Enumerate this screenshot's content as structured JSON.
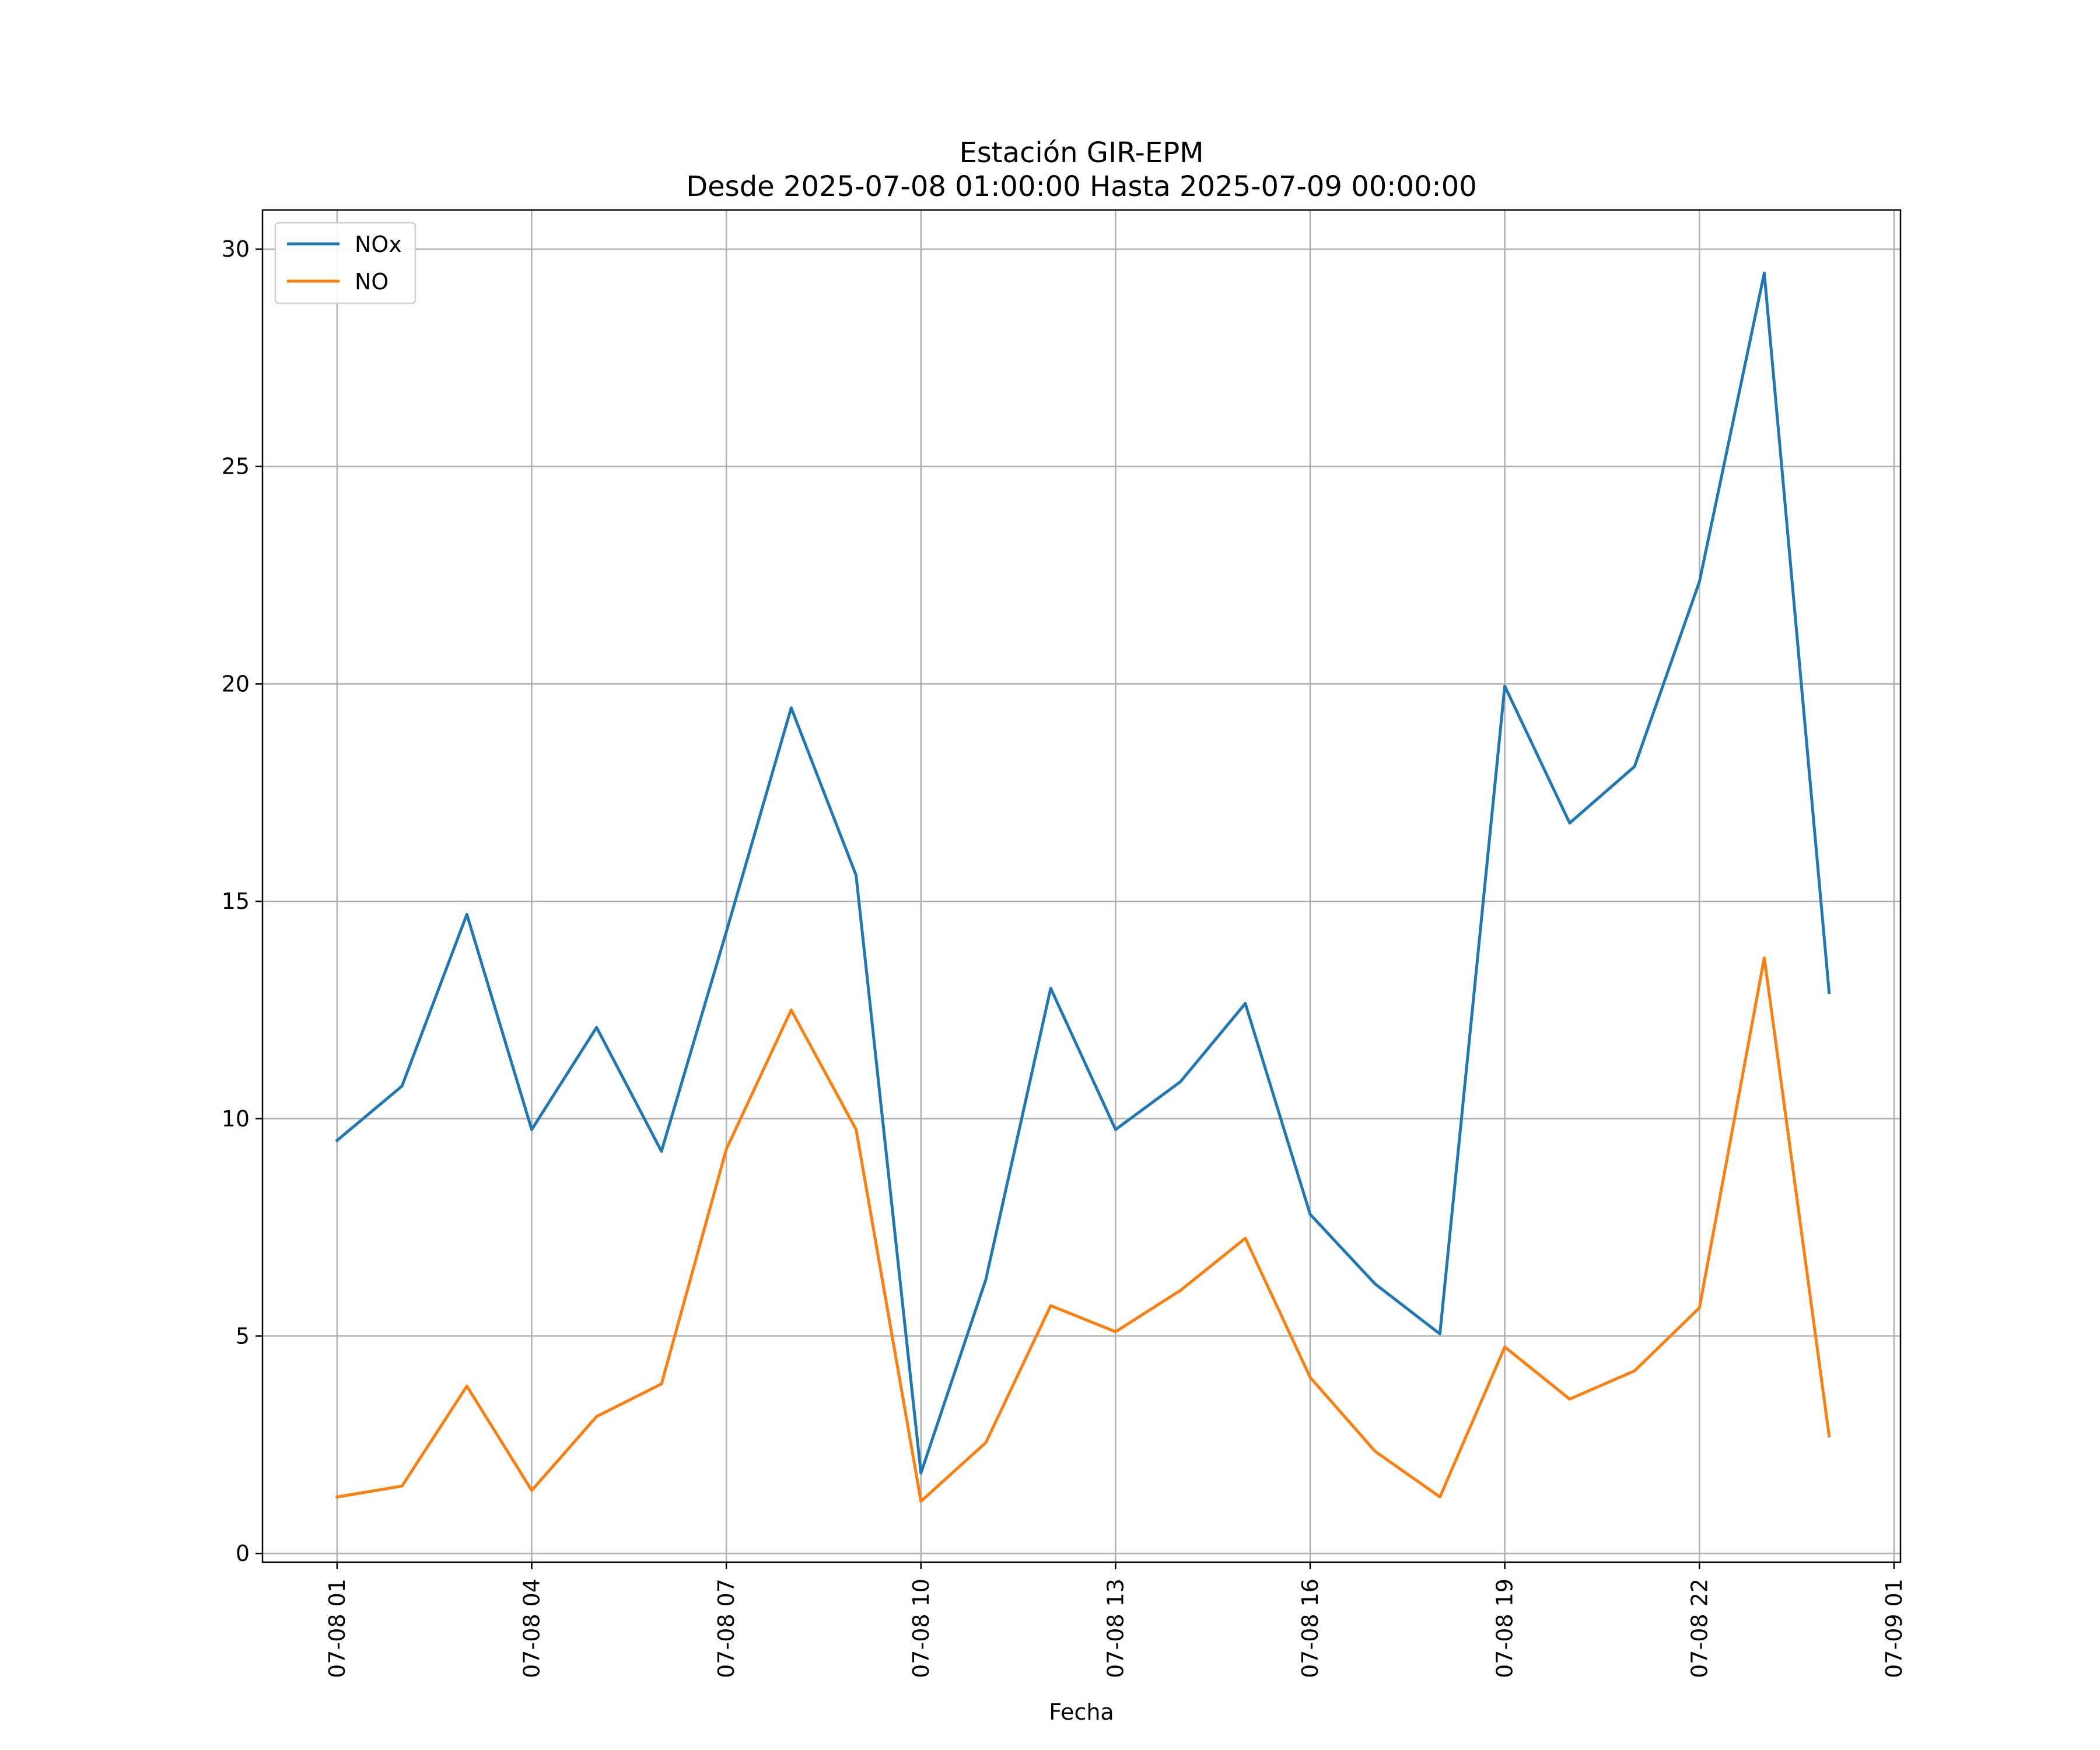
{
  "chart_data": {
    "type": "line",
    "title": "Estación GIR-EPM",
    "subtitle": "Desde 2025-07-08 01:00:00 Hasta 2025-07-09 00:00:00",
    "xlabel": "Fecha",
    "ylabel": "",
    "x": [
      "07-08 01",
      "07-08 02",
      "07-08 03",
      "07-08 04",
      "07-08 05",
      "07-08 06",
      "07-08 07",
      "07-08 08",
      "07-08 09",
      "07-08 10",
      "07-08 11",
      "07-08 12",
      "07-08 13",
      "07-08 14",
      "07-08 15",
      "07-08 16",
      "07-08 17",
      "07-08 18",
      "07-08 19",
      "07-08 20",
      "07-08 21",
      "07-08 22",
      "07-08 23",
      "07-09 00"
    ],
    "x_hours": [
      1,
      2,
      3,
      4,
      5,
      6,
      7,
      8,
      9,
      10,
      11,
      12,
      13,
      14,
      15,
      16,
      17,
      18,
      19,
      20,
      21,
      22,
      23,
      24
    ],
    "xlim": [
      -0.15,
      25.1
    ],
    "ylim": [
      -0.2,
      30.9
    ],
    "x_ticks": [
      {
        "hour": 1,
        "label": "07-08 01"
      },
      {
        "hour": 4,
        "label": "07-08 04"
      },
      {
        "hour": 7,
        "label": "07-08 07"
      },
      {
        "hour": 10,
        "label": "07-08 10"
      },
      {
        "hour": 13,
        "label": "07-08 13"
      },
      {
        "hour": 16,
        "label": "07-08 16"
      },
      {
        "hour": 19,
        "label": "07-08 19"
      },
      {
        "hour": 22,
        "label": "07-08 22"
      },
      {
        "hour": 25,
        "label": "07-09 01"
      }
    ],
    "y_ticks": [
      0,
      5,
      10,
      15,
      20,
      25,
      30
    ],
    "grid": true,
    "legend_position": "top-left",
    "series": [
      {
        "name": "NOx",
        "color": "#1f77b4",
        "values": [
          9.5,
          10.75,
          14.7,
          9.75,
          12.1,
          9.25,
          14.3,
          19.45,
          15.6,
          1.85,
          6.3,
          13.0,
          9.75,
          10.85,
          12.65,
          7.8,
          6.2,
          5.05,
          19.95,
          16.8,
          18.1,
          22.35,
          29.45,
          12.9
        ]
      },
      {
        "name": "NO",
        "color": "#ff7f0e",
        "values": [
          1.3,
          1.55,
          3.85,
          1.45,
          3.15,
          3.9,
          9.3,
          12.5,
          9.75,
          1.2,
          2.55,
          5.7,
          5.1,
          6.05,
          7.25,
          4.05,
          2.35,
          1.3,
          4.75,
          3.55,
          4.2,
          5.65,
          13.7,
          2.7
        ]
      }
    ]
  }
}
